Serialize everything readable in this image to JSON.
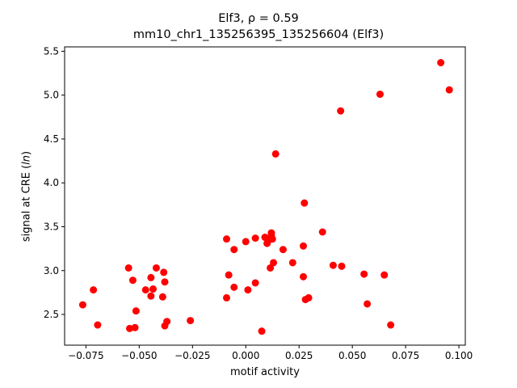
{
  "chart_data": {
    "type": "scatter",
    "title_line1": "Elf3, ρ = 0.59",
    "title_line2": "mm10_chr1_135256395_135256604 (Elf3)",
    "xlabel": "motif activity",
    "ylabel_prefix": "signal at CRE (",
    "ylabel_italic": "ln",
    "ylabel_suffix": ")",
    "xlim": [
      -0.085,
      0.103
    ],
    "ylim": [
      2.15,
      5.55
    ],
    "xticks": [
      -0.075,
      -0.05,
      -0.025,
      0.0,
      0.025,
      0.05,
      0.075,
      0.1
    ],
    "xtick_labels": [
      "−0.075",
      "−0.050",
      "−0.025",
      "0.000",
      "0.025",
      "0.050",
      "0.075",
      "0.100"
    ],
    "yticks": [
      2.5,
      3.0,
      3.5,
      4.0,
      4.5,
      5.0,
      5.5
    ],
    "ytick_labels": [
      "2.5",
      "3.0",
      "3.5",
      "4.0",
      "4.5",
      "5.0",
      "5.5"
    ],
    "grid": false,
    "marker_color": "#ff0000",
    "points": [
      {
        "x": -0.0765,
        "y": 2.61
      },
      {
        "x": -0.0715,
        "y": 2.78
      },
      {
        "x": -0.0695,
        "y": 2.38
      },
      {
        "x": -0.055,
        "y": 3.03
      },
      {
        "x": -0.0545,
        "y": 2.34
      },
      {
        "x": -0.053,
        "y": 2.89
      },
      {
        "x": -0.052,
        "y": 2.35
      },
      {
        "x": -0.0515,
        "y": 2.54
      },
      {
        "x": -0.047,
        "y": 2.78
      },
      {
        "x": -0.0445,
        "y": 2.92
      },
      {
        "x": -0.0445,
        "y": 2.71
      },
      {
        "x": -0.0435,
        "y": 2.79
      },
      {
        "x": -0.042,
        "y": 3.03
      },
      {
        "x": -0.039,
        "y": 2.7
      },
      {
        "x": -0.0385,
        "y": 2.98
      },
      {
        "x": -0.038,
        "y": 2.87
      },
      {
        "x": -0.038,
        "y": 2.37
      },
      {
        "x": -0.037,
        "y": 2.42
      },
      {
        "x": -0.026,
        "y": 2.43
      },
      {
        "x": -0.009,
        "y": 3.36
      },
      {
        "x": -0.009,
        "y": 2.69
      },
      {
        "x": -0.008,
        "y": 2.95
      },
      {
        "x": -0.0055,
        "y": 3.24
      },
      {
        "x": -0.0055,
        "y": 2.81
      },
      {
        "x": 0.0,
        "y": 3.33
      },
      {
        "x": 0.001,
        "y": 2.78
      },
      {
        "x": 0.0045,
        "y": 3.37
      },
      {
        "x": 0.0045,
        "y": 2.86
      },
      {
        "x": 0.0075,
        "y": 2.31
      },
      {
        "x": 0.009,
        "y": 3.38
      },
      {
        "x": 0.01,
        "y": 3.31
      },
      {
        "x": 0.0105,
        "y": 3.34
      },
      {
        "x": 0.0115,
        "y": 3.03
      },
      {
        "x": 0.012,
        "y": 3.4
      },
      {
        "x": 0.012,
        "y": 3.43
      },
      {
        "x": 0.0125,
        "y": 3.36
      },
      {
        "x": 0.013,
        "y": 3.09
      },
      {
        "x": 0.014,
        "y": 4.33
      },
      {
        "x": 0.0175,
        "y": 3.24
      },
      {
        "x": 0.022,
        "y": 3.09
      },
      {
        "x": 0.027,
        "y": 3.28
      },
      {
        "x": 0.027,
        "y": 2.93
      },
      {
        "x": 0.0275,
        "y": 3.77
      },
      {
        "x": 0.028,
        "y": 2.67
      },
      {
        "x": 0.0295,
        "y": 2.69
      },
      {
        "x": 0.036,
        "y": 3.44
      },
      {
        "x": 0.041,
        "y": 3.06
      },
      {
        "x": 0.0445,
        "y": 4.82
      },
      {
        "x": 0.045,
        "y": 3.05
      },
      {
        "x": 0.0555,
        "y": 2.96
      },
      {
        "x": 0.057,
        "y": 2.62
      },
      {
        "x": 0.063,
        "y": 5.01
      },
      {
        "x": 0.065,
        "y": 2.95
      },
      {
        "x": 0.068,
        "y": 2.38
      },
      {
        "x": 0.0915,
        "y": 5.37
      },
      {
        "x": 0.0955,
        "y": 5.06
      }
    ]
  }
}
